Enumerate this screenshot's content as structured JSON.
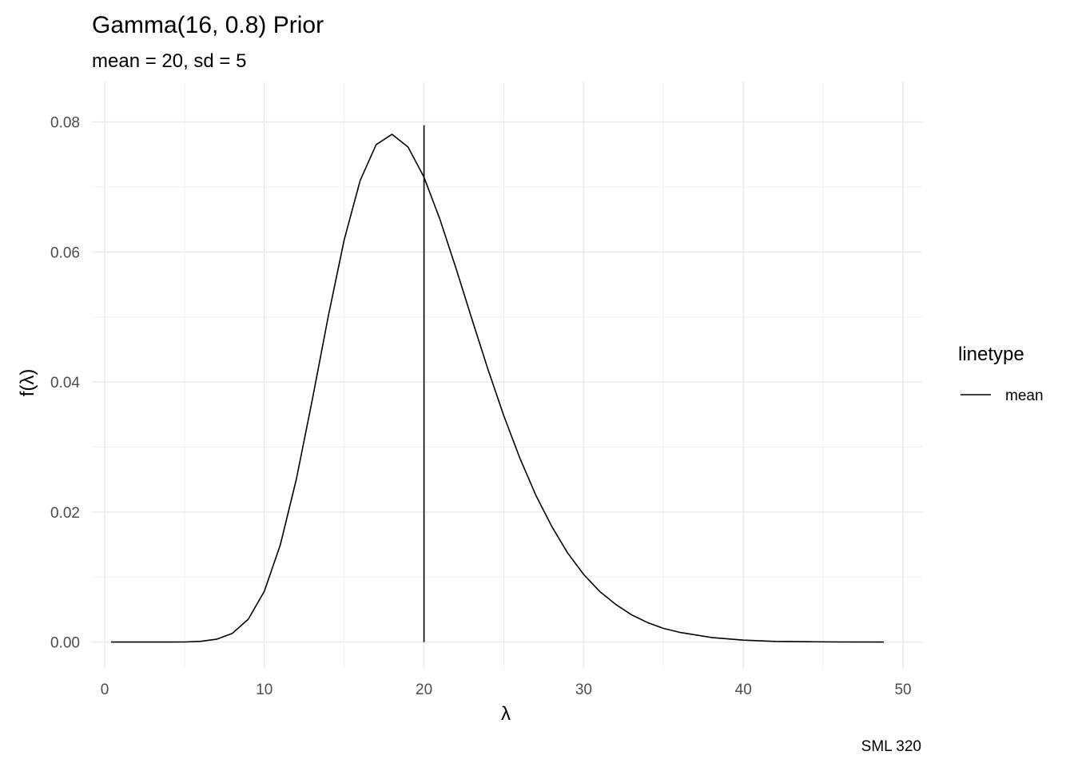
{
  "chart_data": {
    "type": "line",
    "title": "Gamma(16, 0.8) Prior",
    "subtitle": "mean = 20, sd = 5",
    "xlabel": "λ",
    "ylabel": "f(λ)",
    "caption": "SML 320",
    "xlim": [
      -0.8,
      51.2
    ],
    "ylim": [
      -0.0041,
      0.0861
    ],
    "x_ticks": [
      0,
      10,
      20,
      30,
      40,
      50
    ],
    "x_tick_labels": [
      "0",
      "10",
      "20",
      "30",
      "40",
      "50"
    ],
    "y_ticks": [
      0,
      0.02,
      0.04,
      0.06,
      0.08
    ],
    "y_tick_labels": [
      "0.00",
      "0.02",
      "0.04",
      "0.06",
      "0.08"
    ],
    "grid": true,
    "legend": {
      "title": "linetype",
      "position": "right",
      "entries": [
        "mean"
      ]
    },
    "series": [
      {
        "kind": "density",
        "color": "#000000",
        "x": [
          0.4,
          2,
          4,
          5,
          6,
          7,
          8,
          9,
          10,
          11,
          12,
          13,
          14,
          15,
          16,
          17,
          18,
          19,
          20,
          21,
          22,
          23,
          24,
          25,
          26,
          27,
          28,
          29,
          30,
          31,
          32,
          33,
          34,
          35,
          36,
          38,
          40,
          42,
          44,
          46,
          48.8
        ],
        "y": [
          0.0,
          0.0,
          0.0,
          2e-05,
          0.00011,
          0.00043,
          0.00135,
          0.00353,
          0.00782,
          0.01496,
          0.02502,
          0.0372,
          0.05005,
          0.06185,
          0.071,
          0.0765,
          0.0781,
          0.07615,
          0.0715,
          0.065,
          0.0575,
          0.0497,
          0.042,
          0.0348,
          0.0283,
          0.0226,
          0.0178,
          0.0137,
          0.0104,
          0.0078,
          0.0058,
          0.0042,
          0.003,
          0.0021,
          0.0015,
          0.0007,
          0.0003,
          0.0001,
          5e-05,
          2e-05,
          0.0
        ]
      },
      {
        "name": "mean",
        "kind": "vline",
        "color": "#000000",
        "x": 20,
        "y_from": 0,
        "y_to": 0.0795
      }
    ]
  }
}
